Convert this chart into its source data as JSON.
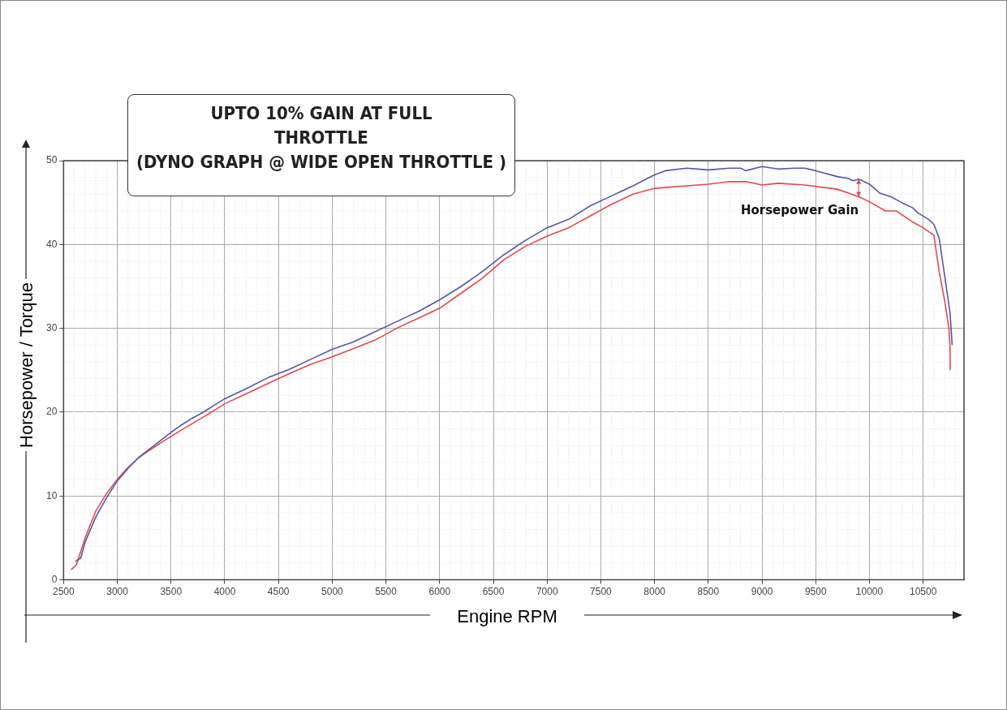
{
  "chart_data": {
    "type": "line",
    "title": "UPTO 10% GAIN AT FULL THROTTLE",
    "subtitle": "(DYNO GRAPH @ WIDE OPEN THROTTLE )",
    "xlabel": "Engine RPM",
    "ylabel": "Horsepower / Torque",
    "xlim": [
      2500,
      10880
    ],
    "xticks": [
      2500,
      3000,
      3500,
      4000,
      4500,
      5000,
      5500,
      6000,
      6500,
      7000,
      7500,
      8000,
      8500,
      9000,
      9500,
      10000,
      10500
    ],
    "ylim": [
      0,
      50
    ],
    "yticks": [
      0,
      10,
      20,
      30,
      40,
      50
    ],
    "grid": true,
    "legend": false,
    "marker": "none",
    "line_style": "solid",
    "annotations": [
      {
        "text": "Horsepower Gain",
        "x": 9900,
        "y": 47.8
      }
    ],
    "series": [
      {
        "color": "#5557a8",
        "x": [
          2610,
          2660,
          2700,
          2800,
          2900,
          3000,
          3100,
          3200,
          3300,
          3400,
          3500,
          3600,
          3700,
          3800,
          3900,
          4000,
          4200,
          4400,
          4600,
          4800,
          5000,
          5200,
          5400,
          5600,
          5800,
          6000,
          6200,
          6400,
          6600,
          6800,
          7000,
          7200,
          7400,
          7600,
          7800,
          8000,
          8100,
          8300,
          8500,
          8700,
          8800,
          8850,
          9000,
          9150,
          9300,
          9400,
          9500,
          9700,
          9800,
          9850,
          9900,
          10000,
          10100,
          10200,
          10300,
          10400,
          10450,
          10550,
          10600,
          10650,
          10700,
          10750,
          10770
        ],
        "values": [
          2.2,
          2.6,
          4.5,
          7.5,
          9.8,
          11.8,
          13.3,
          14.6,
          15.6,
          16.6,
          17.6,
          18.5,
          19.3,
          20,
          20.8,
          21.6,
          22.8,
          24.1,
          25.1,
          26.3,
          27.5,
          28.4,
          29.6,
          30.8,
          32,
          33.4,
          35,
          36.8,
          38.8,
          40.5,
          42,
          43,
          44.6,
          45.8,
          47,
          48.3,
          48.8,
          49.1,
          48.9,
          49.1,
          49.1,
          48.8,
          49.3,
          49,
          49.1,
          49.1,
          48.8,
          48.1,
          47.9,
          47.6,
          47.8,
          47.2,
          46.1,
          45.7,
          45,
          44.4,
          43.8,
          43,
          42.4,
          40.7,
          36.3,
          31.9,
          28
        ]
      },
      {
        "color": "#e8474e",
        "x": [
          2570,
          2620,
          2700,
          2800,
          2900,
          3000,
          3100,
          3200,
          3400,
          3600,
          3800,
          4000,
          4200,
          4400,
          4600,
          4800,
          5000,
          5200,
          5400,
          5600,
          5800,
          6000,
          6200,
          6400,
          6600,
          6800,
          7000,
          7200,
          7400,
          7600,
          7800,
          8000,
          8500,
          8700,
          8850,
          9000,
          9150,
          9400,
          9700,
          9900,
          10000,
          10150,
          10250,
          10400,
          10500,
          10600,
          10650,
          10700,
          10740,
          10750,
          10752
        ],
        "values": [
          1.2,
          1.8,
          5,
          8.2,
          10.3,
          12,
          13.4,
          14.6,
          16.3,
          17.9,
          19.4,
          21,
          22.2,
          23.4,
          24.6,
          25.7,
          26.6,
          27.6,
          28.6,
          30,
          31.2,
          32.4,
          34.2,
          36,
          38.2,
          39.8,
          41,
          42,
          43.4,
          44.8,
          46,
          46.7,
          47.2,
          47.5,
          47.5,
          47.1,
          47.3,
          47.1,
          46.6,
          45.7,
          45.1,
          44,
          44,
          42.7,
          42,
          41.1,
          36.7,
          33.3,
          30,
          27.8,
          25
        ]
      }
    ]
  }
}
